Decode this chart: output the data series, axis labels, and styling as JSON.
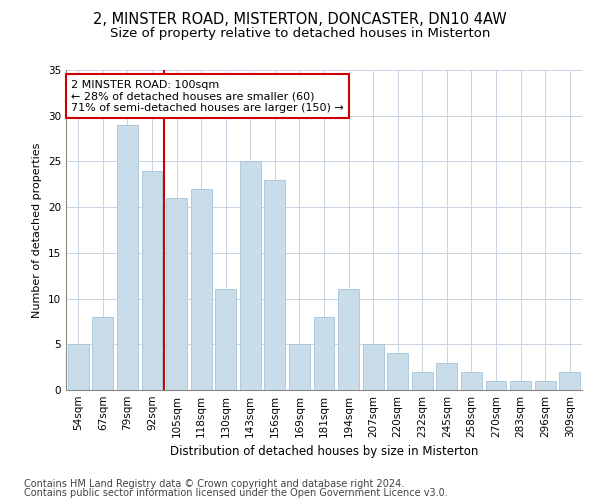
{
  "title1": "2, MINSTER ROAD, MISTERTON, DONCASTER, DN10 4AW",
  "title2": "Size of property relative to detached houses in Misterton",
  "xlabel": "Distribution of detached houses by size in Misterton",
  "ylabel": "Number of detached properties",
  "categories": [
    "54sqm",
    "67sqm",
    "79sqm",
    "92sqm",
    "105sqm",
    "118sqm",
    "130sqm",
    "143sqm",
    "156sqm",
    "169sqm",
    "181sqm",
    "194sqm",
    "207sqm",
    "220sqm",
    "232sqm",
    "245sqm",
    "258sqm",
    "270sqm",
    "283sqm",
    "296sqm",
    "309sqm"
  ],
  "values": [
    5,
    8,
    29,
    24,
    21,
    22,
    11,
    25,
    23,
    5,
    8,
    11,
    5,
    4,
    2,
    3,
    2,
    1,
    1,
    1,
    2
  ],
  "bar_color": "#c9dcea",
  "bar_edge_color": "#a8c4d8",
  "vline_x_index": 3.5,
  "vline_color": "#cc0000",
  "annotation_text": "2 MINSTER ROAD: 100sqm\n← 28% of detached houses are smaller (60)\n71% of semi-detached houses are larger (150) →",
  "annotation_box_color": "#ffffff",
  "annotation_box_edge": "#cc0000",
  "ylim": [
    0,
    35
  ],
  "yticks": [
    0,
    5,
    10,
    15,
    20,
    25,
    30,
    35
  ],
  "bg_color": "#ffffff",
  "grid_color": "#c8d4e3",
  "footer1": "Contains HM Land Registry data © Crown copyright and database right 2024.",
  "footer2": "Contains public sector information licensed under the Open Government Licence v3.0.",
  "title1_fontsize": 10.5,
  "title2_fontsize": 9.5,
  "xlabel_fontsize": 8.5,
  "ylabel_fontsize": 8,
  "tick_fontsize": 7.5,
  "annotation_fontsize": 8,
  "footer_fontsize": 7
}
